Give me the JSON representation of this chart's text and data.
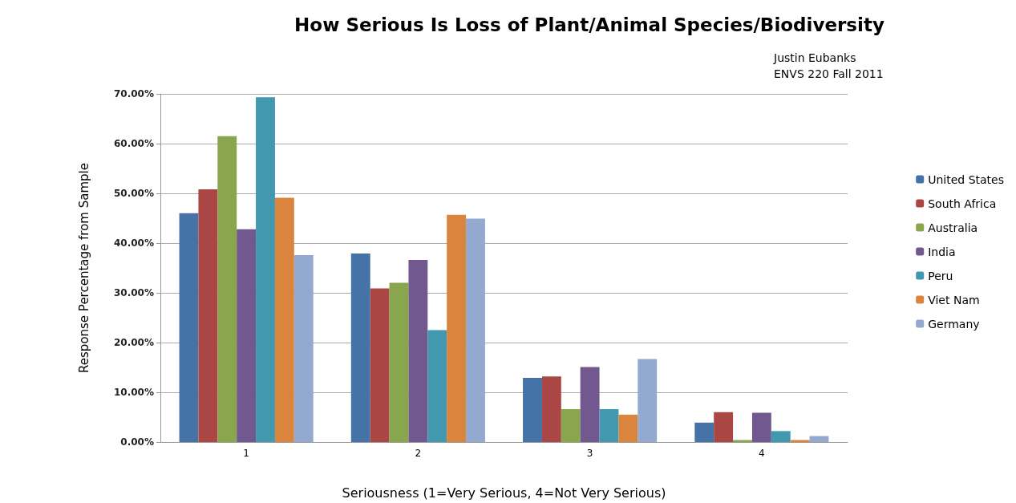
{
  "chart_data": {
    "type": "bar",
    "title": "How Serious Is Loss of Plant/Animal Species/Biodiversity",
    "annotations": [
      "Justin Eubanks",
      "ENVS 220 Fall 2011"
    ],
    "xlabel": "Seriousness (1=Very Serious, 4=Not Very Serious)",
    "ylabel": "Response Percentage from Sample",
    "categories": [
      "1",
      "2",
      "3",
      "4"
    ],
    "series": [
      {
        "name": "United States",
        "color": "#4572a7",
        "values": [
          46.0,
          37.9,
          12.9,
          3.9
        ]
      },
      {
        "name": "South Africa",
        "color": "#aa4643",
        "values": [
          50.8,
          30.9,
          13.2,
          6.0
        ]
      },
      {
        "name": "Australia",
        "color": "#89a54e",
        "values": [
          61.5,
          32.0,
          6.6,
          0.4
        ]
      },
      {
        "name": "India",
        "color": "#71588f",
        "values": [
          42.8,
          36.6,
          15.1,
          5.9
        ]
      },
      {
        "name": "Peru",
        "color": "#4198af",
        "values": [
          69.3,
          22.5,
          6.6,
          2.2
        ]
      },
      {
        "name": "Viet Nam",
        "color": "#db843d",
        "values": [
          49.1,
          45.7,
          5.5,
          0.4
        ]
      },
      {
        "name": "Germany",
        "color": "#93a9cf",
        "values": [
          37.6,
          44.9,
          16.7,
          1.2
        ]
      }
    ],
    "ylim": [
      0,
      70
    ],
    "yticks": [
      {
        "value": 0,
        "label": "0.00%"
      },
      {
        "value": 10,
        "label": "10.00%"
      },
      {
        "value": 20,
        "label": "20.00%"
      },
      {
        "value": 30,
        "label": "30.00%"
      },
      {
        "value": 40,
        "label": "40.00%"
      },
      {
        "value": 50,
        "label": "50.00%"
      },
      {
        "value": 60,
        "label": "60.00%"
      },
      {
        "value": 70,
        "label": "70.00%"
      }
    ],
    "grid": "y",
    "legend": "right"
  }
}
